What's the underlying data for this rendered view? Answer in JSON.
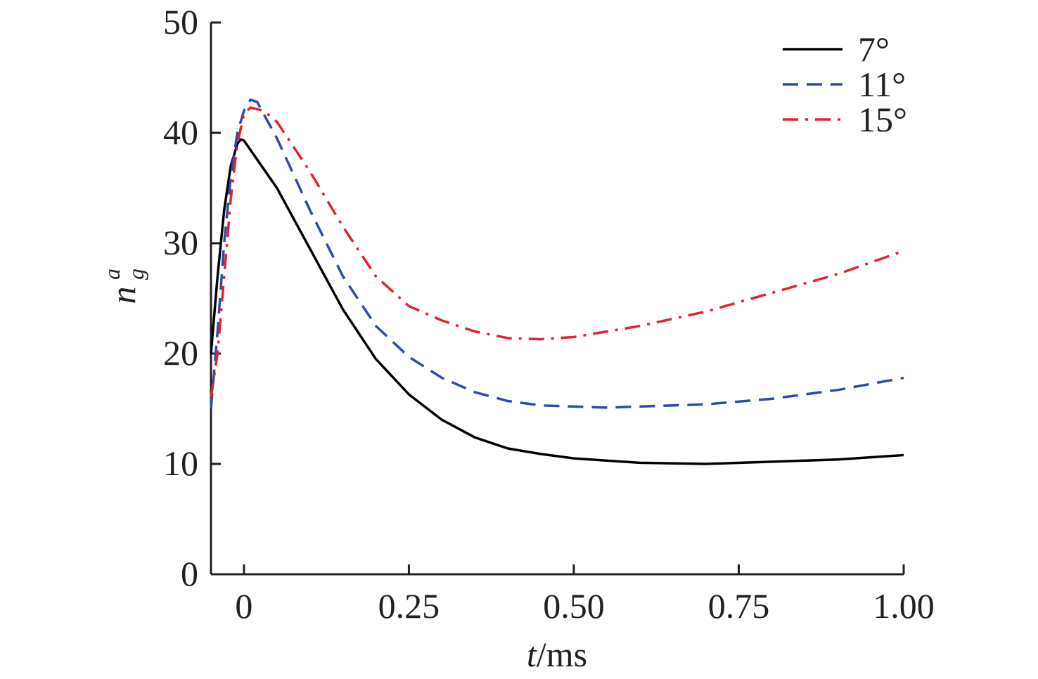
{
  "chart_data": {
    "type": "line",
    "title": "",
    "xlabel_italic": "t",
    "xlabel_rest": "/ms",
    "ylabel_base": "n",
    "ylabel_sub": "g",
    "ylabel_sup": "a",
    "xlim": [
      -0.05,
      1.0
    ],
    "ylim": [
      0,
      50
    ],
    "xticks": [
      0,
      0.25,
      0.5,
      0.75,
      1.0
    ],
    "xtick_labels": [
      "0",
      "0.25",
      "0.50",
      "0.75",
      "1.00"
    ],
    "yticks": [
      0,
      10,
      20,
      30,
      40,
      50
    ],
    "ytick_labels": [
      "0",
      "10",
      "20",
      "30",
      "40",
      "50"
    ],
    "grid": false,
    "legend_position": "top-right",
    "series": [
      {
        "name": "7°",
        "color": "#000000",
        "dash": "solid",
        "x": [
          -0.05,
          -0.04,
          -0.03,
          -0.02,
          -0.01,
          -0.005,
          0,
          0.05,
          0.1,
          0.15,
          0.2,
          0.25,
          0.3,
          0.35,
          0.4,
          0.45,
          0.5,
          0.6,
          0.7,
          0.8,
          0.9,
          1.0
        ],
        "y": [
          20,
          27,
          33,
          37,
          39,
          39.4,
          39.3,
          35,
          29.5,
          24,
          19.5,
          16.3,
          14,
          12.4,
          11.4,
          10.9,
          10.5,
          10.1,
          10.0,
          10.2,
          10.4,
          10.8
        ]
      },
      {
        "name": "11°",
        "color": "#2e4aa8",
        "dash": "dashed",
        "x": [
          -0.05,
          -0.04,
          -0.03,
          -0.02,
          -0.01,
          0,
          0.01,
          0.02,
          0.05,
          0.1,
          0.15,
          0.2,
          0.25,
          0.3,
          0.35,
          0.4,
          0.45,
          0.5,
          0.55,
          0.6,
          0.7,
          0.8,
          0.9,
          1.0
        ],
        "y": [
          15,
          22,
          30,
          36,
          40,
          42,
          43,
          42.8,
          39.5,
          33,
          27,
          22.5,
          19.7,
          17.8,
          16.5,
          15.7,
          15.3,
          15.2,
          15.1,
          15.2,
          15.4,
          15.9,
          16.7,
          17.8
        ]
      },
      {
        "name": "15°",
        "color": "#e0242f",
        "dash": "dashdot",
        "x": [
          -0.05,
          -0.04,
          -0.03,
          -0.02,
          -0.01,
          0,
          0.01,
          0.03,
          0.05,
          0.1,
          0.15,
          0.2,
          0.25,
          0.3,
          0.35,
          0.4,
          0.45,
          0.5,
          0.6,
          0.7,
          0.8,
          0.9,
          1.0
        ],
        "y": [
          16,
          20,
          27,
          34,
          39,
          41.7,
          42.3,
          42,
          41,
          36.5,
          31.5,
          27,
          24.3,
          23,
          22,
          21.4,
          21.3,
          21.5,
          22.5,
          23.8,
          25.5,
          27.2,
          29.3
        ]
      }
    ]
  }
}
